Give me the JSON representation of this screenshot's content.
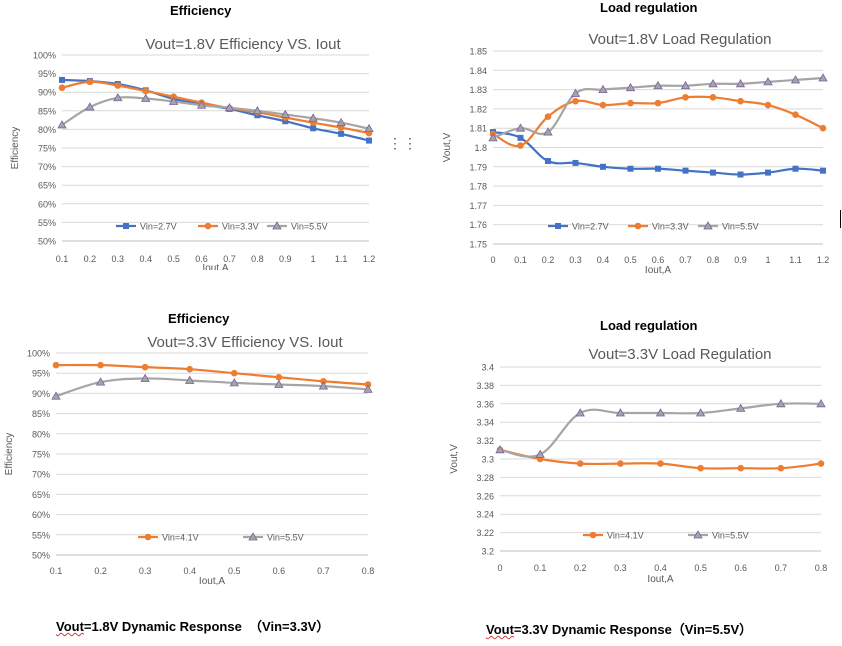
{
  "charts": [
    {
      "heading": "Efficiency",
      "chart_data": {
        "type": "line",
        "title": "Vout=1.8V     Efficiency  VS.  Iout",
        "xlabel": "Iout,A",
        "ylabel": "Efficiency",
        "x": [
          0.1,
          0.2,
          0.3,
          0.4,
          0.5,
          0.6,
          0.7,
          0.8,
          0.9,
          1,
          1.1,
          1.2
        ],
        "xtick_labels": [
          "0.1",
          "0.2",
          "0.3",
          "0.4",
          "0.5",
          "0.6",
          "0.7",
          "0.8",
          "0.9",
          "1",
          "1.1",
          "1.2"
        ],
        "ylim": [
          50,
          100
        ],
        "ytick_labels": [
          "50%",
          "55%",
          "60%",
          "65%",
          "70%",
          "75%",
          "80%",
          "85%",
          "90%",
          "95%",
          "100%"
        ],
        "grid": true,
        "legend_position": "bottom",
        "series": [
          {
            "name": "Vin=2.7V",
            "color": "#4472C4",
            "marker": "square",
            "values": [
              93.3,
              93.0,
              92.2,
              90.5,
              88.2,
              86.8,
              85.5,
              83.8,
              82.2,
              80.3,
              78.8,
              77.0
            ]
          },
          {
            "name": "Vin=3.3V",
            "color": "#ED7D31",
            "marker": "circle",
            "values": [
              91.2,
              92.8,
              91.8,
              90.3,
              88.8,
              87.2,
              85.7,
              84.6,
              83.2,
              81.8,
              80.5,
              79.0
            ]
          },
          {
            "name": "Vin=5.5V",
            "color": "#A5A5A5",
            "marker": "triangle",
            "values": [
              81.2,
              86.0,
              88.5,
              88.3,
              87.5,
              86.5,
              85.8,
              85.0,
              84.0,
              83.0,
              81.8,
              80.2
            ]
          }
        ]
      }
    },
    {
      "heading": "Load regulation",
      "chart_data": {
        "type": "line",
        "title": "Vout=1.8V     Load Regulation",
        "xlabel": "Iout,A",
        "ylabel": "Vout,V",
        "x": [
          0,
          0.1,
          0.2,
          0.3,
          0.4,
          0.5,
          0.6,
          0.7,
          0.8,
          0.9,
          1,
          1.1,
          1.2
        ],
        "xtick_labels": [
          "0",
          "0.1",
          "0.2",
          "0.3",
          "0.4",
          "0.5",
          "0.6",
          "0.7",
          "0.8",
          "0.9",
          "1",
          "1.1",
          "1.2"
        ],
        "ylim": [
          1.75,
          1.85
        ],
        "ytick_labels": [
          "1.75",
          "1.76",
          "1.77",
          "1.78",
          "1.79",
          "1.8",
          "1.81",
          "1.82",
          "1.83",
          "1.84",
          "1.85"
        ],
        "grid": true,
        "legend_position": "bottom",
        "series": [
          {
            "name": "Vin=2.7V",
            "color": "#4472C4",
            "marker": "square",
            "values": [
              1.808,
              1.805,
              1.793,
              1.792,
              1.79,
              1.789,
              1.789,
              1.788,
              1.787,
              1.786,
              1.787,
              1.789,
              1.788
            ]
          },
          {
            "name": "Vin=3.3V",
            "color": "#ED7D31",
            "marker": "circle",
            "values": [
              1.807,
              1.801,
              1.816,
              1.824,
              1.822,
              1.823,
              1.823,
              1.826,
              1.826,
              1.824,
              1.822,
              1.817,
              1.81
            ]
          },
          {
            "name": "Vin=5.5V",
            "color": "#A5A5A5",
            "marker": "triangle",
            "values": [
              1.805,
              1.81,
              1.808,
              1.828,
              1.83,
              1.831,
              1.832,
              1.832,
              1.833,
              1.833,
              1.834,
              1.835,
              1.836
            ]
          }
        ]
      }
    },
    {
      "heading": "Efficiency",
      "chart_data": {
        "type": "line",
        "title": "Vout=3.3V     Efficiency  VS.  Iout",
        "xlabel": "Iout,A",
        "ylabel": "Efficiency",
        "x": [
          0.1,
          0.2,
          0.3,
          0.4,
          0.5,
          0.6,
          0.7,
          0.8
        ],
        "xtick_labels": [
          "0.1",
          "0.2",
          "0.3",
          "0.4",
          "0.5",
          "0.6",
          "0.7",
          "0.8"
        ],
        "ylim": [
          50,
          100
        ],
        "ytick_labels": [
          "50%",
          "55%",
          "60%",
          "65%",
          "70%",
          "75%",
          "80%",
          "85%",
          "90%",
          "95%",
          "100%"
        ],
        "grid": true,
        "legend_position": "bottom",
        "series": [
          {
            "name": "Vin=4.1V",
            "color": "#ED7D31",
            "marker": "circle",
            "values": [
              97.0,
              97.0,
              96.5,
              96.0,
              95.0,
              94.0,
              93.0,
              92.2
            ]
          },
          {
            "name": "Vin=5.5V",
            "color": "#A5A5A5",
            "marker": "triangle",
            "values": [
              89.3,
              92.8,
              93.7,
              93.2,
              92.6,
              92.2,
              91.8,
              91.0
            ]
          }
        ]
      }
    },
    {
      "heading": "Load regulation",
      "chart_data": {
        "type": "line",
        "title": "Vout=3.3V     Load Regulation",
        "xlabel": "Iout,A",
        "ylabel": "Vout,V",
        "x": [
          0,
          0.1,
          0.2,
          0.3,
          0.4,
          0.5,
          0.6,
          0.7,
          0.8
        ],
        "xtick_labels": [
          "0",
          "0.1",
          "0.2",
          "0.3",
          "0.4",
          "0.5",
          "0.6",
          "0.7",
          "0.8"
        ],
        "ylim": [
          3.2,
          3.4
        ],
        "ytick_labels": [
          "3.2",
          "3.22",
          "3.24",
          "3.26",
          "3.28",
          "3.3",
          "3.32",
          "3.34",
          "3.36",
          "3.38",
          "3.4"
        ],
        "grid": true,
        "legend_position": "bottom",
        "series": [
          {
            "name": "Vin=4.1V",
            "color": "#ED7D31",
            "marker": "circle",
            "values": [
              3.31,
              3.3,
              3.295,
              3.295,
              3.295,
              3.29,
              3.29,
              3.29,
              3.295
            ]
          },
          {
            "name": "Vin=5.5V",
            "color": "#A5A5A5",
            "marker": "triangle",
            "values": [
              3.31,
              3.305,
              3.35,
              3.35,
              3.35,
              3.35,
              3.355,
              3.36,
              3.36
            ]
          }
        ]
      }
    }
  ],
  "captions": {
    "left": {
      "prefix": "Vout",
      "rest": "=1.8V Dynamic Response  （Vin=3.3V）"
    },
    "right": {
      "prefix": "Vout",
      "rest": "=3.3V Dynamic Response（Vin=5.5V）"
    }
  }
}
